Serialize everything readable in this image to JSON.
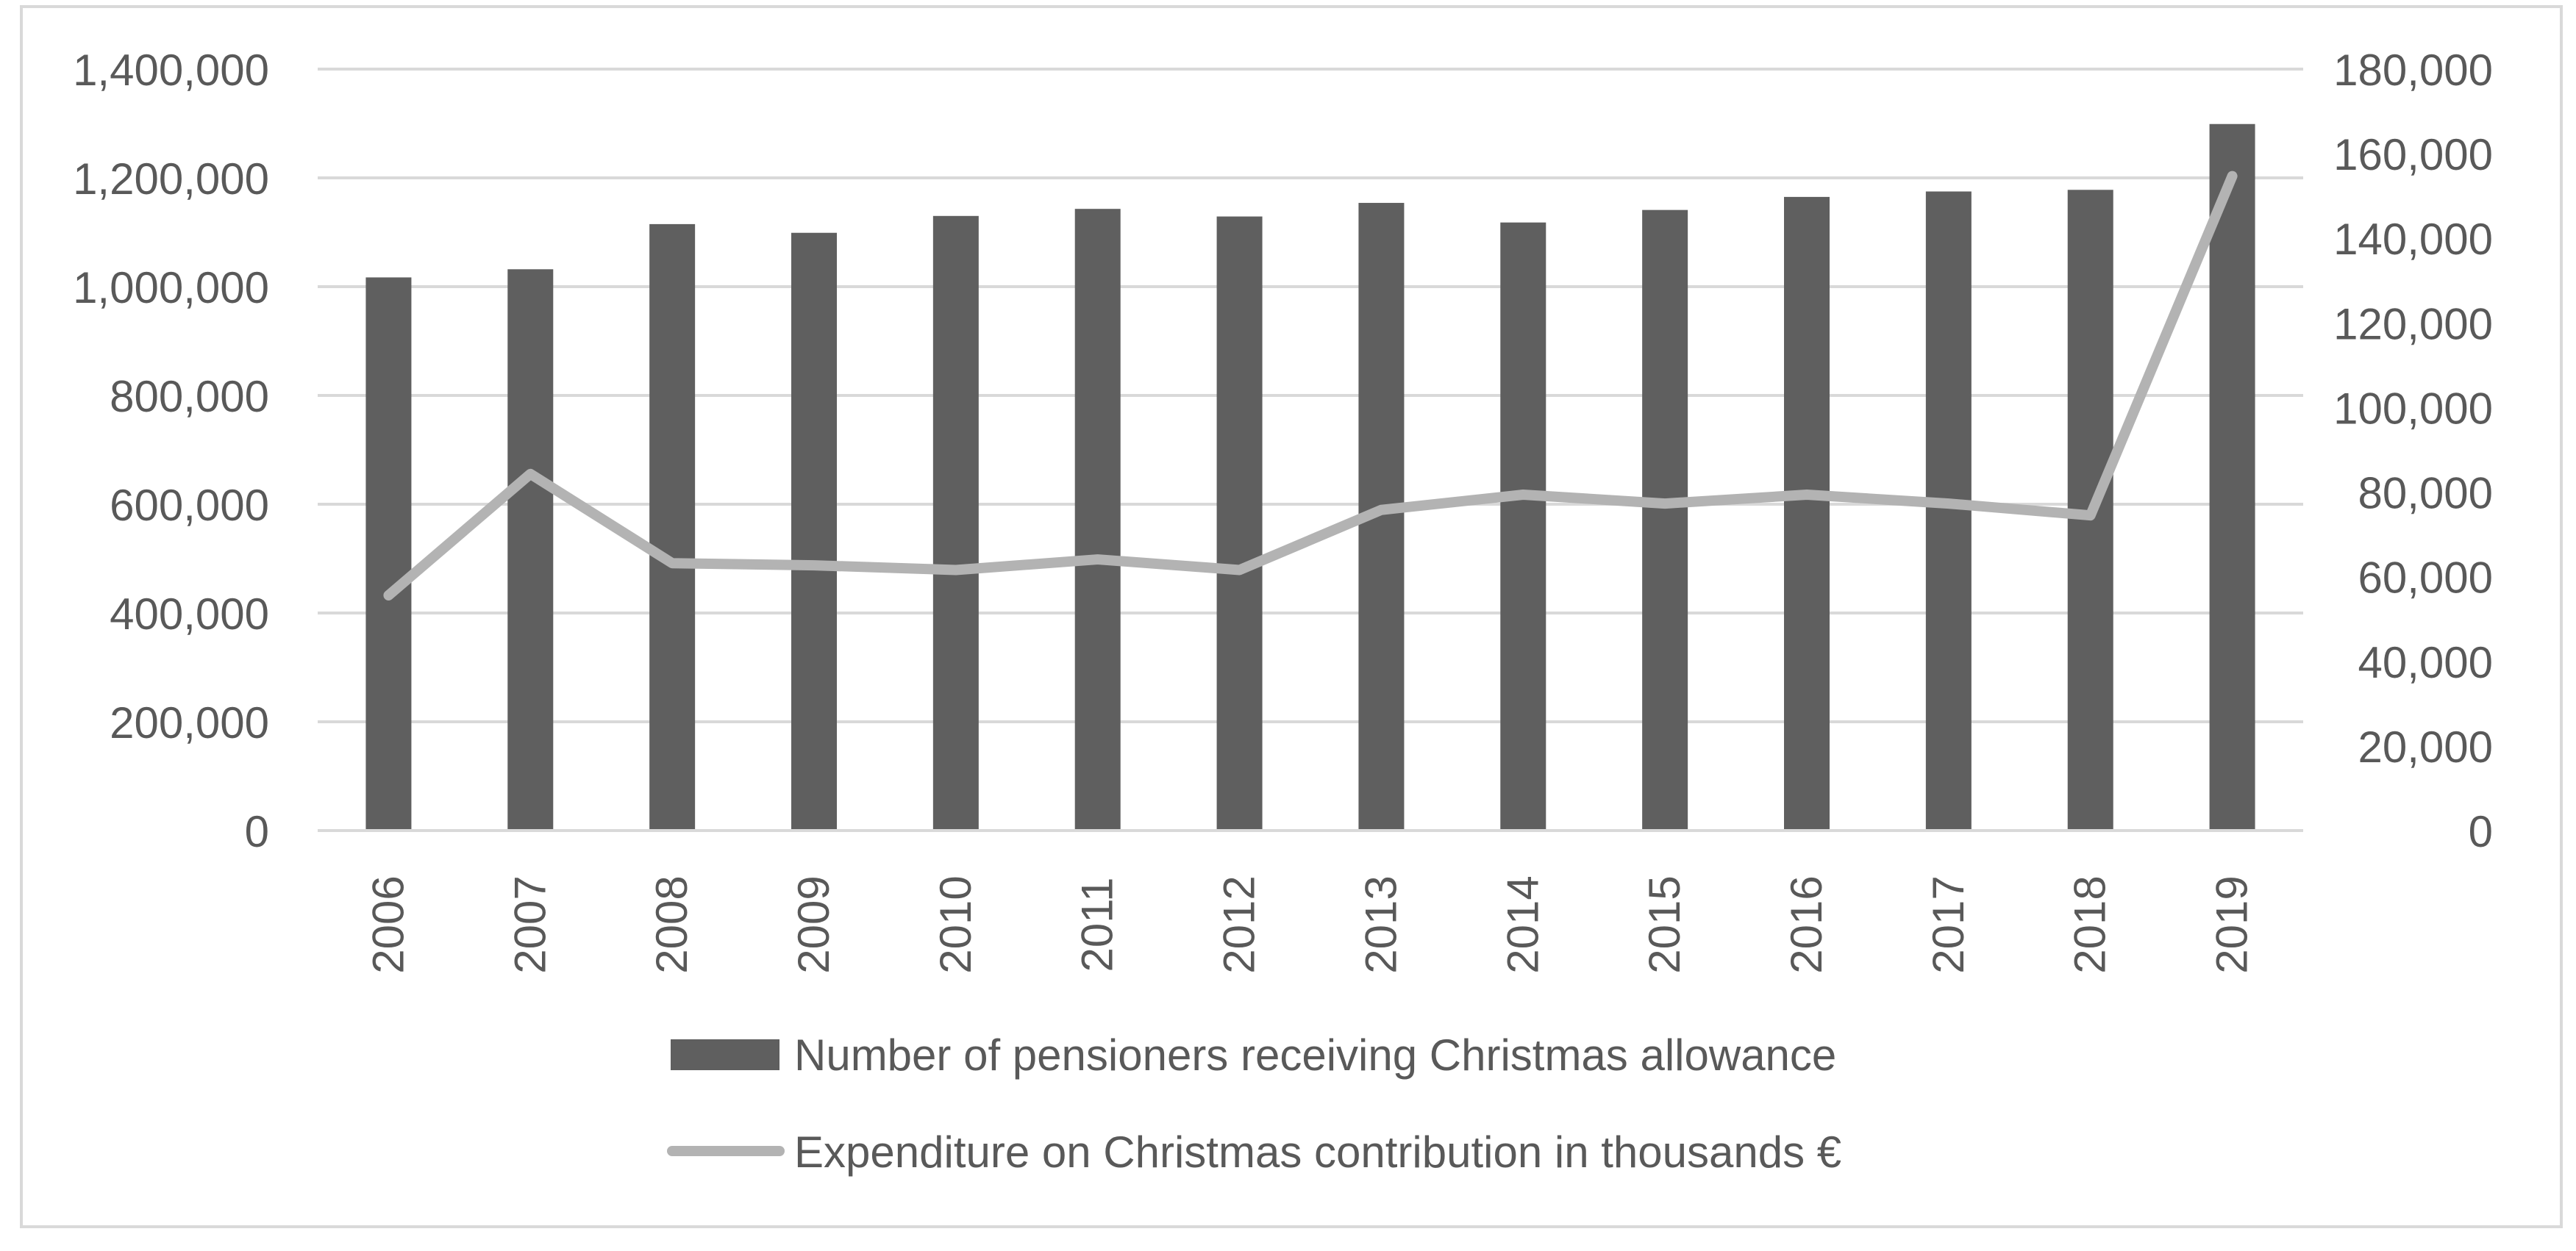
{
  "chart_data": {
    "type": "bar",
    "title": "",
    "xlabel": "",
    "categories": [
      "2006",
      "2007",
      "2008",
      "2009",
      "2010",
      "2011",
      "2012",
      "2013",
      "2014",
      "2015",
      "2016",
      "2017",
      "2018",
      "2019"
    ],
    "series": [
      {
        "name": "Number of pensioners receiving Christmas allowance",
        "type": "bar",
        "axis": "left",
        "color": "#5f5f5f",
        "values": [
          1017000,
          1032000,
          1115000,
          1099000,
          1130000,
          1143000,
          1129000,
          1154000,
          1118000,
          1141000,
          1165000,
          1175000,
          1178000,
          1299000
        ]
      },
      {
        "name": "Expenditure on Christmas contribution in thousands €",
        "type": "line",
        "axis": "right",
        "color": "#b3b3b3",
        "values": [
          55600,
          84300,
          63200,
          62700,
          61600,
          64100,
          61600,
          75800,
          79400,
          77300,
          79400,
          77300,
          74500,
          154700
        ]
      }
    ],
    "y_left": {
      "range": [
        0,
        1400000
      ],
      "ticks": [
        "0",
        "200,000",
        "400,000",
        "600,000",
        "800,000",
        "1,000,000",
        "1,200,000",
        "1,400,000"
      ],
      "tick_values": [
        0,
        200000,
        400000,
        600000,
        800000,
        1000000,
        1200000,
        1400000
      ]
    },
    "y_right": {
      "range": [
        0,
        180000
      ],
      "ticks": [
        "0",
        "20,000",
        "40,000",
        "60,000",
        "80,000",
        "100,000",
        "120,000",
        "140,000",
        "160,000",
        "180,000"
      ],
      "tick_values": [
        0,
        20000,
        40000,
        60000,
        80000,
        100000,
        120000,
        140000,
        160000,
        180000
      ]
    },
    "grid": true,
    "legend_position": "bottom",
    "colors": {
      "gridline": "#d9d9d9",
      "border": "#d9d9d9",
      "text": "#595959"
    }
  }
}
